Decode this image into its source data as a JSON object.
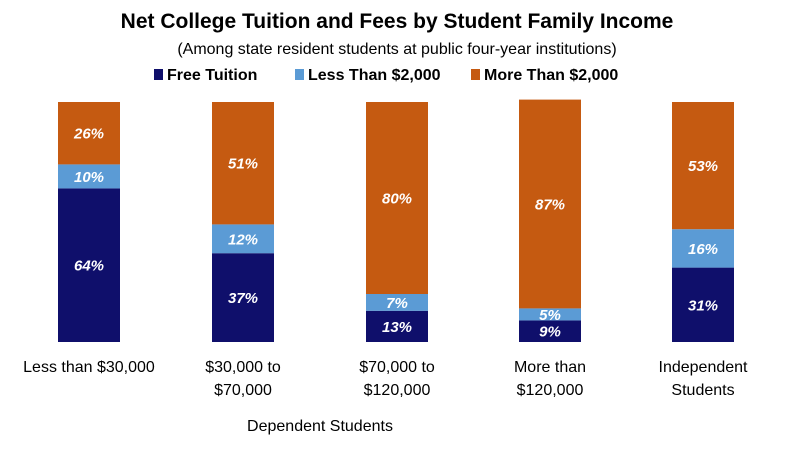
{
  "chart_data": {
    "type": "bar",
    "stacked": true,
    "normalized_percent": true,
    "title": "Net College Tuition and Fees by Student Family Income",
    "subtitle": "(Among state resident students at public four-year institutions)",
    "categories": [
      [
        "Less than $30,000"
      ],
      [
        "$30,000 to",
        "$70,000"
      ],
      [
        "$70,000 to",
        "$120,000"
      ],
      [
        "More than",
        "$120,000"
      ],
      [
        "Independent",
        "Students"
      ]
    ],
    "group_label": "Dependent Students",
    "series": [
      {
        "name": "Free Tuition",
        "color": "#0f0f6b",
        "values": [
          64,
          37,
          13,
          9,
          31
        ]
      },
      {
        "name": "Less Than $2,000",
        "color": "#5b9bd5",
        "values": [
          10,
          12,
          7,
          5,
          16
        ]
      },
      {
        "name": "More Than $2,000",
        "color": "#c55a11",
        "values": [
          26,
          51,
          80,
          87,
          53
        ]
      }
    ],
    "data_labels": [
      [
        "64%",
        "37%",
        "13%",
        "9%",
        "31%"
      ],
      [
        "10%",
        "12%",
        "7%",
        "5%",
        "16%"
      ],
      [
        "26%",
        "51%",
        "80%",
        "87%",
        "53%"
      ]
    ],
    "legend_position": "top",
    "ylim": [
      0,
      100
    ],
    "grid": false,
    "xlabel": "",
    "ylabel": ""
  }
}
